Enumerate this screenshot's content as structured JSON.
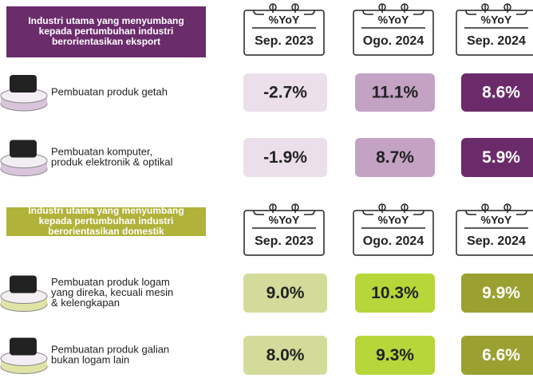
{
  "sections": [
    {
      "title_lines": [
        "Industri utama yang menyumbang",
        "kepada pertumbuhan industri",
        "berorientasikan eksport"
      ],
      "periods": [
        {
          "unit": "%YoY",
          "label": "Sep. 2023"
        },
        {
          "unit": "%YoY",
          "label": "Ogo. 2024"
        },
        {
          "unit": "%YoY",
          "label": "Sep. 2024"
        }
      ],
      "rows": [
        {
          "label_lines": [
            "Pembuatan produk getah"
          ],
          "values": [
            "-2.7%",
            "11.1%",
            "8.6%"
          ]
        },
        {
          "label_lines": [
            "Pembuatan komputer,",
            "produk elektronik & optikal"
          ],
          "values": [
            "-1.9%",
            "8.7%",
            "5.9%"
          ]
        }
      ]
    },
    {
      "title_lines": [
        "Industri utama yang menyumbang",
        "kepada pertumbuhan industri",
        "berorientasikan domestik"
      ],
      "periods": [
        {
          "unit": "%YoY",
          "label": "Sep. 2023"
        },
        {
          "unit": "%YoY",
          "label": "Ogo. 2024"
        },
        {
          "unit": "%YoY",
          "label": "Sep. 2024"
        }
      ],
      "rows": [
        {
          "label_lines": [
            "Pembuatan produk logam",
            "yang direka, kecuali mesin",
            "& kelengkapan"
          ],
          "values": [
            "9.0%",
            "10.3%",
            "9.9%"
          ]
        },
        {
          "label_lines": [
            "Pembuatan produk galian",
            "bukan logam lain"
          ],
          "values": [
            "8.0%",
            "9.3%",
            "6.6%"
          ]
        }
      ]
    }
  ]
}
